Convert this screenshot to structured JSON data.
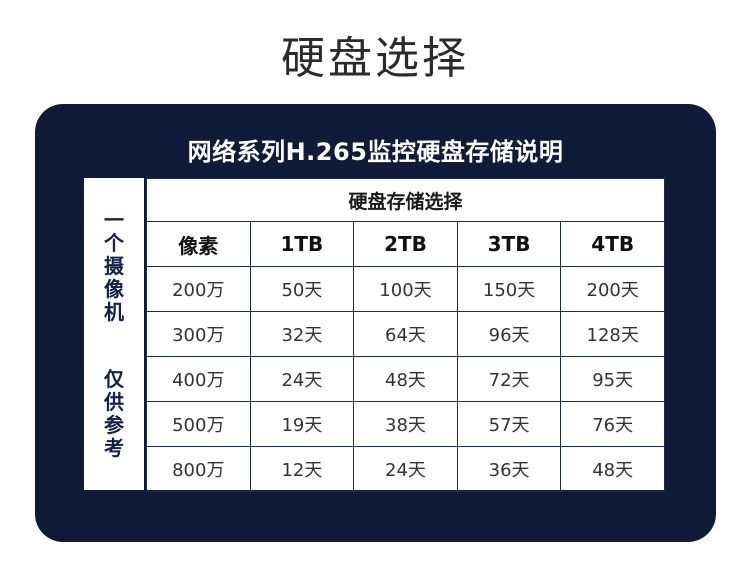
{
  "page": {
    "title": "硬盘选择"
  },
  "card": {
    "title": "网络系列H.265监控硬盘存储说明",
    "side_label_top": [
      "一",
      "个",
      "摄",
      "像",
      "机"
    ],
    "side_label_bottom": [
      "仅",
      "供",
      "参",
      "考"
    ]
  },
  "table": {
    "group_header": "硬盘存储选择",
    "columns": [
      "像素",
      "1TB",
      "2TB",
      "3TB",
      "4TB"
    ],
    "rows": [
      [
        "200万",
        "50天",
        "100天",
        "150天",
        "200天"
      ],
      [
        "300万",
        "32天",
        "64天",
        "96天",
        "128天"
      ],
      [
        "400万",
        "24天",
        "48天",
        "72天",
        "95天"
      ],
      [
        "500万",
        "19天",
        "38天",
        "57天",
        "76天"
      ],
      [
        "800万",
        "12天",
        "24天",
        "36天",
        "48天"
      ]
    ]
  }
}
